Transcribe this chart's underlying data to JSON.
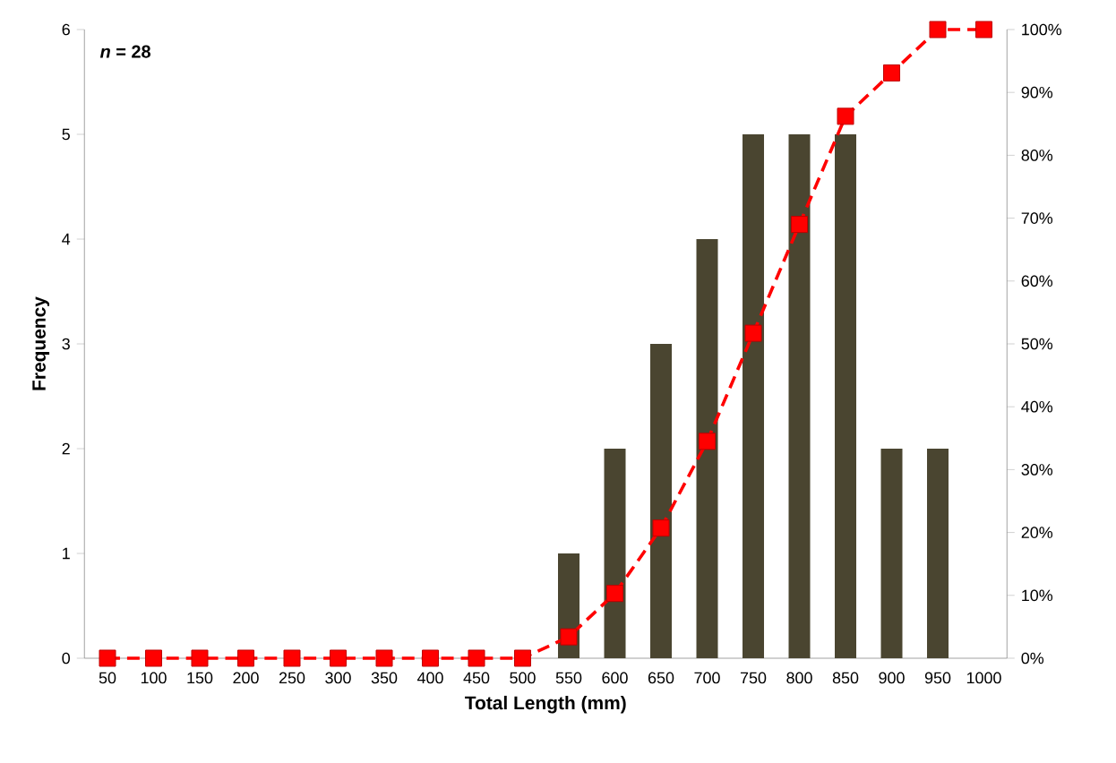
{
  "chart_data": {
    "type": "bar",
    "xlabel": "Total Length (mm)",
    "ylabel": "Frequency",
    "annotations": [
      "*n* = 28"
    ],
    "categories": [
      "50",
      "100",
      "150",
      "200",
      "250",
      "300",
      "350",
      "400",
      "450",
      "500",
      "550",
      "600",
      "650",
      "700",
      "750",
      "800",
      "850",
      "900",
      "950",
      "1000"
    ],
    "series": [
      {
        "color": "#4a4530",
        "values": [
          0,
          0,
          0,
          0,
          0,
          0,
          0,
          0,
          0,
          0,
          1,
          2,
          3,
          4,
          5,
          5,
          5,
          2,
          2,
          0
        ]
      },
      {
        "type": "line",
        "axis": "y2",
        "color": "#ff0000",
        "marker": "square",
        "line_style": "dashed",
        "values": [
          0,
          0,
          0,
          0,
          0,
          0,
          0,
          0,
          0,
          0,
          3.4,
          10.3,
          20.7,
          34.5,
          51.7,
          69.0,
          86.2,
          93.1,
          100,
          100
        ]
      }
    ],
    "ylim": [
      0,
      6
    ],
    "yticks": [
      0,
      1,
      2,
      3,
      4,
      5,
      6
    ],
    "y2lim": [
      0,
      100
    ],
    "y2ticks": [
      {
        "value": 0,
        "label": "0%"
      },
      {
        "value": 10,
        "label": "10%"
      },
      {
        "value": 20,
        "label": "20%"
      },
      {
        "value": 30,
        "label": "30%"
      },
      {
        "value": 40,
        "label": "40%"
      },
      {
        "value": 50,
        "label": "50%"
      },
      {
        "value": 60,
        "label": "60%"
      },
      {
        "value": 70,
        "label": "70%"
      },
      {
        "value": 80,
        "label": "80%"
      },
      {
        "value": 90,
        "label": "90%"
      },
      {
        "value": 100,
        "label": "100%"
      }
    ]
  }
}
